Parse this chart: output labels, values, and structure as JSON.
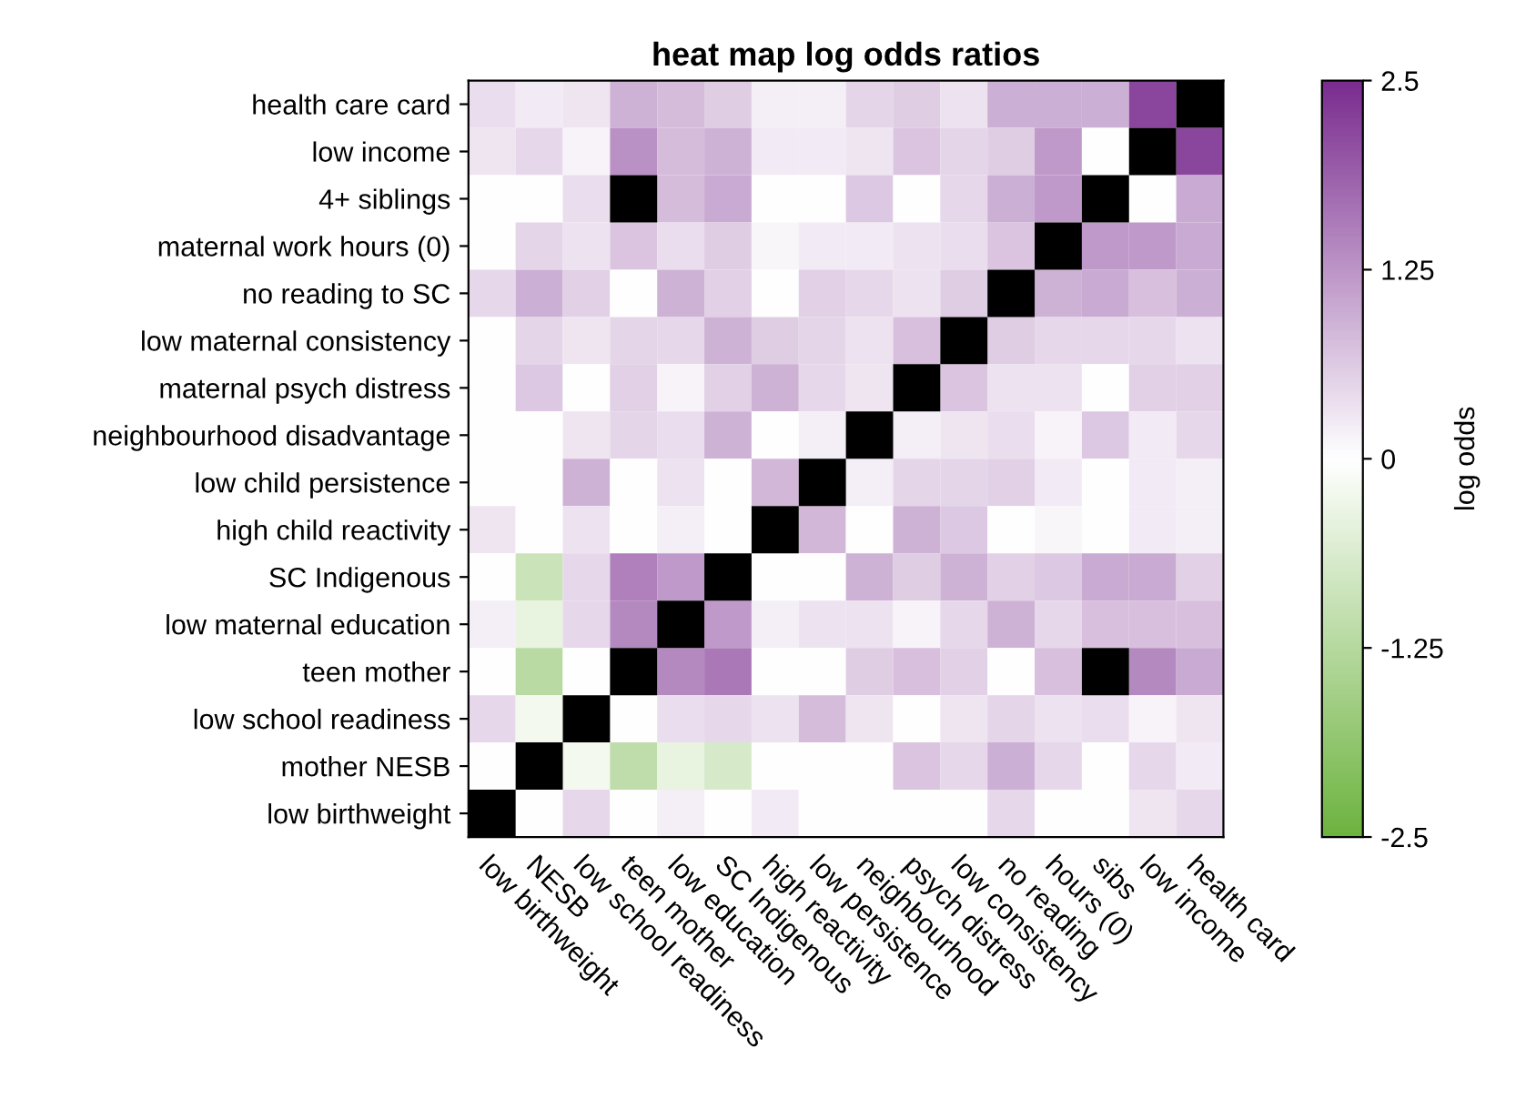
{
  "chart_data": {
    "type": "heatmap",
    "title": "heat map log odds ratios",
    "clabel": "log odds",
    "categories": [
      "low birthweight",
      "NESB",
      "low school readiness",
      "teen mother",
      "low education",
      "SC Indigenous",
      "high reactivity",
      "low persistence",
      "neighbourhood",
      "psych distress",
      "low consistency",
      "no reading",
      "hours (0)",
      "sibs",
      "low income",
      "health card"
    ],
    "y_categories": [
      "health care card",
      "low income",
      "4+ siblings",
      "maternal work hours (0)",
      "no reading to SC",
      "low maternal consistency",
      "maternal psych distress",
      "neighbourhood disadvantage",
      "low child persistence",
      "high child reactivity",
      "SC Indigenous",
      "low maternal education",
      "teen mother",
      "low school readiness",
      "mother NESB",
      "low birthweight"
    ],
    "cells": [
      [
        0.4,
        0.25,
        0.3,
        0.9,
        0.8,
        0.6,
        0.2,
        0.2,
        0.5,
        0.6,
        0.35,
        0.95,
        0.95,
        0.95,
        2.2,
        null
      ],
      [
        0.3,
        0.45,
        0.15,
        1.3,
        0.8,
        0.9,
        0.25,
        0.25,
        0.3,
        0.7,
        0.5,
        0.6,
        1.2,
        0,
        null,
        2.2
      ],
      [
        0,
        0,
        0.4,
        null,
        0.8,
        1.0,
        0,
        0,
        0.65,
        0,
        0.45,
        0.95,
        1.2,
        null,
        0,
        1.0
      ],
      [
        0,
        0.5,
        0.35,
        0.7,
        0.4,
        0.6,
        0.1,
        0.25,
        0.25,
        0.35,
        0.4,
        0.7,
        null,
        1.2,
        1.2,
        1.0
      ],
      [
        0.45,
        0.95,
        0.55,
        0,
        0.9,
        0.55,
        0,
        0.55,
        0.45,
        0.35,
        0.6,
        null,
        0.9,
        1.0,
        0.75,
        0.95
      ],
      [
        0,
        0.5,
        0.3,
        0.5,
        0.45,
        0.9,
        0.6,
        0.5,
        0.35,
        0.75,
        null,
        0.6,
        0.45,
        0.45,
        0.45,
        0.35
      ],
      [
        0,
        0.65,
        0,
        0.55,
        0.15,
        0.55,
        0.9,
        0.45,
        0.3,
        null,
        0.7,
        0.35,
        0.35,
        0,
        0.55,
        0.55
      ],
      [
        0,
        0,
        0.3,
        0.5,
        0.4,
        0.9,
        0,
        0.2,
        null,
        0.2,
        0.3,
        0.4,
        0.15,
        0.65,
        0.25,
        0.45
      ],
      [
        0,
        0,
        0.9,
        0,
        0.35,
        0,
        0.85,
        null,
        0.2,
        0.5,
        0.5,
        0.55,
        0.25,
        0,
        0.25,
        0.2
      ],
      [
        0.3,
        0,
        0.35,
        0,
        0.2,
        0,
        null,
        0.85,
        0,
        0.9,
        0.65,
        0,
        0.1,
        0,
        0.25,
        0.2
      ],
      [
        0,
        -0.9,
        0.45,
        1.5,
        1.2,
        null,
        0,
        0,
        0.9,
        0.6,
        0.9,
        0.55,
        0.65,
        1.0,
        1.0,
        0.55
      ],
      [
        0.2,
        -0.4,
        0.45,
        1.4,
        null,
        1.2,
        0.2,
        0.35,
        0.35,
        0.15,
        0.45,
        0.9,
        0.45,
        0.75,
        0.75,
        0.75
      ],
      [
        0,
        -1.2,
        0,
        null,
        1.4,
        1.6,
        0,
        0,
        0.6,
        0.75,
        0.55,
        0,
        0.75,
        null,
        1.4,
        1.0
      ],
      [
        0.45,
        -0.2,
        null,
        0,
        0.4,
        0.45,
        0.35,
        0.8,
        0.3,
        0,
        0.3,
        0.5,
        0.35,
        0.4,
        0.15,
        0.3
      ],
      [
        0,
        null,
        -0.2,
        -1.1,
        -0.4,
        -0.7,
        0,
        0,
        0,
        0.7,
        0.45,
        0.95,
        0.45,
        0,
        0.45,
        0.25
      ],
      [
        null,
        0,
        0.45,
        0,
        0.2,
        0,
        0.25,
        0,
        0,
        0,
        0,
        0.45,
        0,
        0,
        0.3,
        0.45
      ]
    ],
    "clim": [
      -2.5,
      2.5
    ],
    "cticks": [
      -2.5,
      -1.25,
      0,
      1.25,
      2.5
    ]
  }
}
